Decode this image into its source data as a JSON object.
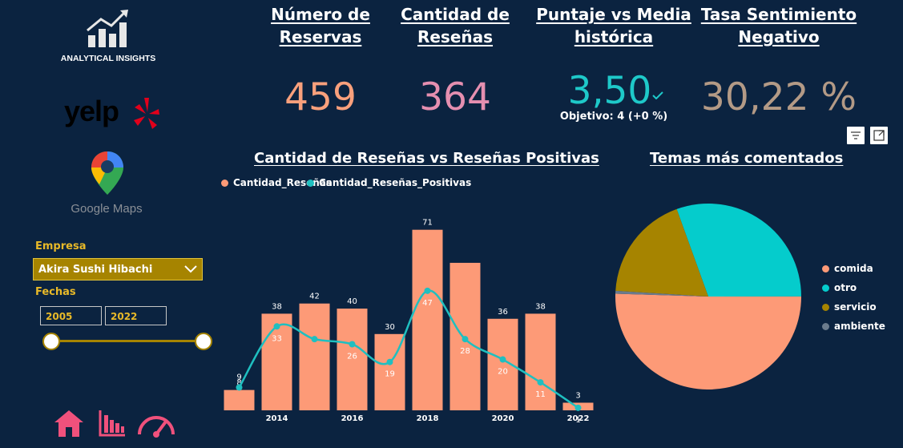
{
  "brand": {
    "logo_text": "ANALYTICAL INSIGHTS",
    "yelp_text": "yelp",
    "maps_text": "Google Maps"
  },
  "kpis": [
    {
      "title_line1": "Número de",
      "title_line2": "Reservas",
      "value": "459",
      "color": "#f9a07c"
    },
    {
      "title_line1": "Cantidad de",
      "title_line2": "Reseñas",
      "value": "364",
      "color": "#e58fb0"
    },
    {
      "title_line1": "Puntaje vs Media",
      "title_line2": "histórica",
      "value": "3,50",
      "color": "#1ec9c9",
      "target": "Objetivo: 4 (+0 %)"
    },
    {
      "title_line1": "Tasa Sentimiento",
      "title_line2": "Negativo",
      "value": "30,22 %",
      "color": "#b39a86"
    }
  ],
  "filters": {
    "empresa_label": "Empresa",
    "empresa_value": "Akira Sushi Hibachi",
    "fechas_label": "Fechas",
    "date_from": "2005",
    "date_to": "2022",
    "range_selected": [
      0,
      1
    ]
  },
  "nav_icons": [
    "home-icon",
    "bar-chart-icon",
    "gauge-icon"
  ],
  "chart_data": [
    {
      "type": "bar",
      "title": "Cantidad de Reseñas vs Reseñas Positivas",
      "categories": [
        "2013",
        "2014",
        "2015",
        "2016",
        "2017",
        "2018",
        "2019",
        "2020",
        "2021",
        "2022"
      ],
      "x_tick_labels": [
        "2014",
        "2016",
        "2018",
        "2020",
        "2022"
      ],
      "series": [
        {
          "name": "Cantidad_Reseñas",
          "kind": "bar",
          "color": "#fd9a77",
          "values": [
            8,
            38,
            42,
            40,
            30,
            71,
            58,
            36,
            38,
            3
          ],
          "labels": [
            "8",
            "38",
            "42",
            "40",
            "30",
            "71",
            "",
            "36",
            "38",
            "3"
          ]
        },
        {
          "name": "Cantidad_Reseñas_Positivas",
          "kind": "line",
          "color": "#1fbfc0",
          "values": [
            9,
            33,
            28,
            26,
            19,
            47,
            28,
            20,
            11,
            1
          ],
          "labels": [
            "9",
            "33",
            "",
            "26",
            "19",
            "47",
            "28",
            "20",
            "11",
            "1"
          ]
        }
      ],
      "ylim": [
        0,
        75
      ],
      "legend": "top-left",
      "grid": false
    },
    {
      "type": "pie",
      "title": "Temas más comentados",
      "labels": [
        "comida",
        "otro",
        "servicio",
        "ambiente"
      ],
      "values": [
        50.5,
        30.5,
        18.5,
        0.5
      ],
      "colors": [
        "#fd9a77",
        "#05cccc",
        "#a68400",
        "#6b7b8c"
      ],
      "legend": "right"
    }
  ]
}
